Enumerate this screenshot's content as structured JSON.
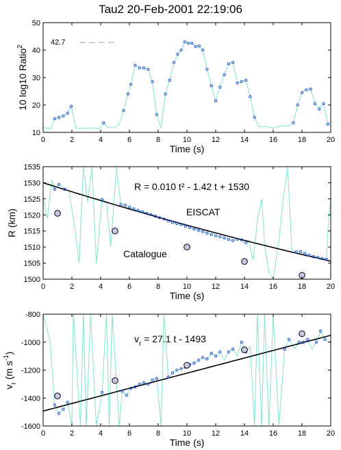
{
  "figure_title": "Tau2  20-Feb-2001 22:19:06",
  "chart_data": [
    {
      "type": "line",
      "xlabel": "Time  (s)",
      "ylabel_main": "10 log10 Ratio",
      "ylabel_sup": "2",
      "xlim": [
        0,
        20
      ],
      "ylim": [
        10,
        50
      ],
      "xticks": [
        "0",
        "2",
        "4",
        "6",
        "8",
        "10",
        "12",
        "14",
        "16",
        "18",
        "20"
      ],
      "yticks": [
        "10",
        "20",
        "30",
        "40",
        "50"
      ],
      "reference_label": "42.7",
      "reference_value": 42.7,
      "trace_color": "#7fe3cf",
      "marker_color": "#1f3fd6",
      "trace": [
        [
          0,
          12
        ],
        [
          0.2,
          11.6
        ],
        [
          0.5,
          11.3
        ],
        [
          0.8,
          15
        ],
        [
          1.1,
          15.4
        ],
        [
          1.4,
          16
        ],
        [
          1.7,
          17
        ],
        [
          1.95,
          19.5
        ],
        [
          2.3,
          11.5
        ],
        [
          2.8,
          11.5
        ],
        [
          3.5,
          11.6
        ],
        [
          3.9,
          11.3
        ],
        [
          4.2,
          13.5
        ],
        [
          4.5,
          11.7
        ],
        [
          5,
          11.8
        ],
        [
          5.3,
          13
        ],
        [
          5.6,
          18
        ],
        [
          5.9,
          24
        ],
        [
          6.1,
          27.5
        ],
        [
          6.4,
          34.5
        ],
        [
          6.7,
          33.5
        ],
        [
          7,
          33.5
        ],
        [
          7.3,
          33
        ],
        [
          7.6,
          28.5
        ],
        [
          7.9,
          16.5
        ],
        [
          8.2,
          11.5
        ],
        [
          8.5,
          24
        ],
        [
          8.8,
          29
        ],
        [
          9.1,
          35.5
        ],
        [
          9.35,
          38.5
        ],
        [
          9.6,
          40
        ],
        [
          9.85,
          43
        ],
        [
          10.1,
          42.5
        ],
        [
          10.35,
          42.5
        ],
        [
          10.6,
          41.3
        ],
        [
          10.85,
          41.5
        ],
        [
          11.1,
          40
        ],
        [
          11.4,
          33
        ],
        [
          11.7,
          27
        ],
        [
          12,
          21.5
        ],
        [
          12.3,
          26.5
        ],
        [
          12.6,
          31
        ],
        [
          12.9,
          35
        ],
        [
          13.2,
          35.5
        ],
        [
          13.5,
          28
        ],
        [
          13.8,
          28.5
        ],
        [
          14.1,
          29
        ],
        [
          14.4,
          23
        ],
        [
          14.7,
          15.5
        ],
        [
          15,
          12
        ],
        [
          15.5,
          12.2
        ],
        [
          16,
          11.5
        ],
        [
          16.6,
          12.5
        ],
        [
          17,
          12.2
        ],
        [
          17.4,
          13.5
        ],
        [
          17.7,
          20
        ],
        [
          18,
          24.5
        ],
        [
          18.3,
          25.5
        ],
        [
          18.6,
          25.8
        ],
        [
          18.9,
          20.5
        ],
        [
          19.2,
          18.5
        ],
        [
          19.5,
          20.5
        ],
        [
          19.8,
          13
        ],
        [
          20,
          14
        ]
      ],
      "points": [
        [
          0.8,
          15
        ],
        [
          1.1,
          15.4
        ],
        [
          1.4,
          16
        ],
        [
          1.7,
          17
        ],
        [
          1.95,
          19.5
        ],
        [
          4.2,
          13.5
        ],
        [
          5.6,
          18
        ],
        [
          5.9,
          24
        ],
        [
          6.1,
          27.5
        ],
        [
          6.4,
          34.5
        ],
        [
          6.7,
          33.5
        ],
        [
          7,
          33.5
        ],
        [
          7.3,
          33
        ],
        [
          7.6,
          28.5
        ],
        [
          7.9,
          16.5
        ],
        [
          8.5,
          24
        ],
        [
          8.8,
          29
        ],
        [
          9.1,
          35.5
        ],
        [
          9.35,
          38.5
        ],
        [
          9.6,
          40
        ],
        [
          9.85,
          43
        ],
        [
          10.1,
          42.5
        ],
        [
          10.35,
          42.5
        ],
        [
          10.6,
          41.3
        ],
        [
          10.85,
          41.5
        ],
        [
          11.1,
          40
        ],
        [
          11.4,
          33
        ],
        [
          11.7,
          27
        ],
        [
          12,
          21.5
        ],
        [
          12.3,
          26.5
        ],
        [
          12.6,
          31
        ],
        [
          12.9,
          35
        ],
        [
          13.2,
          35.5
        ],
        [
          13.5,
          28
        ],
        [
          13.8,
          28.5
        ],
        [
          14.1,
          29
        ],
        [
          14.4,
          23
        ],
        [
          14.7,
          15.5
        ],
        [
          17.4,
          13.5
        ],
        [
          17.7,
          20
        ],
        [
          18,
          24.5
        ],
        [
          18.3,
          25.5
        ],
        [
          18.6,
          25.8
        ],
        [
          18.9,
          20.5
        ],
        [
          19.2,
          18.5
        ],
        [
          19.5,
          20.5
        ],
        [
          19.8,
          13
        ]
      ]
    },
    {
      "type": "line",
      "xlabel": "Time  (s)",
      "ylabel": "R  (km)",
      "xlim": [
        0,
        20
      ],
      "ylim": [
        1500,
        1535
      ],
      "xticks": [
        "0",
        "2",
        "4",
        "6",
        "8",
        "10",
        "12",
        "14",
        "16",
        "18",
        "20"
      ],
      "yticks": [
        "1500",
        "1505",
        "1510",
        "1515",
        "1520",
        "1525",
        "1530",
        "1535"
      ],
      "fit_label": "R = 0.010 t² - 1.42 t + 1530",
      "fit_coeffs": [
        0.01,
        -1.42,
        1530
      ],
      "eiscat_label": "EISCAT",
      "catalogue_label": "Catalogue",
      "trace_color": "#7fe3cf",
      "marker_color": "#1f3fd6",
      "catalogue_fill": "#c8c8e6",
      "trace": [
        [
          0,
          1525
        ],
        [
          0.3,
          1519
        ],
        [
          0.6,
          1531
        ],
        [
          0.8,
          1528
        ],
        [
          1.1,
          1529.5
        ],
        [
          1.5,
          1528
        ],
        [
          1.8,
          1527.5
        ],
        [
          2.2,
          1516
        ],
        [
          2.5,
          1505
        ],
        [
          2.8,
          1535
        ],
        [
          3.1,
          1524
        ],
        [
          3.4,
          1535
        ],
        [
          3.7,
          1505
        ],
        [
          4.1,
          1525
        ],
        [
          4.4,
          1524
        ],
        [
          4.7,
          1510
        ],
        [
          5.1,
          1535
        ],
        [
          5.4,
          1523.2
        ],
        [
          5.7,
          1523
        ],
        [
          6,
          1522.4
        ],
        [
          6.3,
          1521.9
        ],
        [
          6.6,
          1521.4
        ],
        [
          6.9,
          1521
        ],
        [
          7.2,
          1520.5
        ],
        [
          7.5,
          1520.1
        ],
        [
          7.8,
          1519.6
        ],
        [
          8.1,
          1519.1
        ],
        [
          8.4,
          1518.7
        ],
        [
          8.7,
          1518.2
        ],
        [
          9,
          1517.7
        ],
        [
          9.3,
          1517.3
        ],
        [
          9.6,
          1517
        ],
        [
          9.9,
          1516.5
        ],
        [
          10.2,
          1516.1
        ],
        [
          10.5,
          1515.6
        ],
        [
          10.8,
          1515.2
        ],
        [
          11.1,
          1514.8
        ],
        [
          11.4,
          1514.3
        ],
        [
          11.7,
          1513.9
        ],
        [
          12,
          1513.5
        ],
        [
          12.3,
          1513.2
        ],
        [
          12.6,
          1512.8
        ],
        [
          12.9,
          1512.4
        ],
        [
          13.2,
          1512
        ],
        [
          13.5,
          1512.4
        ],
        [
          13.8,
          1512.2
        ],
        [
          14.1,
          1511
        ],
        [
          14.3,
          1512
        ],
        [
          14.6,
          1506
        ],
        [
          14.9,
          1518
        ],
        [
          15.2,
          1525
        ],
        [
          15.4,
          1511
        ],
        [
          15.7,
          1502
        ],
        [
          16,
          1500
        ],
        [
          16.4,
          1512
        ],
        [
          16.7,
          1525
        ],
        [
          17,
          1535
        ],
        [
          17.3,
          1509
        ],
        [
          17.6,
          1508.5
        ],
        [
          17.9,
          1508.6
        ],
        [
          18.2,
          1508
        ],
        [
          18.5,
          1507.5
        ],
        [
          18.8,
          1507
        ],
        [
          19.1,
          1506.8
        ],
        [
          19.4,
          1506.4
        ],
        [
          19.7,
          1506.2
        ],
        [
          19.85,
          1519
        ],
        [
          20,
          1525
        ]
      ],
      "points": [
        [
          0.8,
          1528
        ],
        [
          1.1,
          1529.5
        ],
        [
          1.5,
          1528
        ],
        [
          4.1,
          1524.8
        ],
        [
          5.4,
          1523.2
        ],
        [
          5.7,
          1523
        ],
        [
          6,
          1522.4
        ],
        [
          6.3,
          1521.9
        ],
        [
          6.6,
          1521.4
        ],
        [
          6.9,
          1521
        ],
        [
          7.2,
          1520.5
        ],
        [
          7.5,
          1520.1
        ],
        [
          7.8,
          1519.6
        ],
        [
          8.1,
          1519.1
        ],
        [
          8.4,
          1518.7
        ],
        [
          8.7,
          1518.2
        ],
        [
          9,
          1517.7
        ],
        [
          9.3,
          1517.3
        ],
        [
          9.6,
          1517
        ],
        [
          9.9,
          1516.5
        ],
        [
          10.2,
          1516.1
        ],
        [
          10.5,
          1515.6
        ],
        [
          10.8,
          1515.2
        ],
        [
          11.1,
          1514.8
        ],
        [
          11.4,
          1514.3
        ],
        [
          11.7,
          1513.9
        ],
        [
          12,
          1513.5
        ],
        [
          12.3,
          1513.2
        ],
        [
          12.6,
          1512.8
        ],
        [
          12.9,
          1512.4
        ],
        [
          13.2,
          1512
        ],
        [
          13.5,
          1512.4
        ],
        [
          13.8,
          1512.2
        ],
        [
          14.1,
          1511.4
        ],
        [
          17.6,
          1508.5
        ],
        [
          17.9,
          1508.6
        ],
        [
          18.2,
          1508
        ],
        [
          18.5,
          1507.5
        ],
        [
          18.8,
          1507
        ],
        [
          19.1,
          1506.8
        ],
        [
          19.4,
          1506.4
        ],
        [
          19.7,
          1506.2
        ]
      ],
      "catalogue": [
        [
          1,
          1520.5
        ],
        [
          5,
          1515
        ],
        [
          10,
          1510
        ],
        [
          14,
          1505.5
        ],
        [
          18,
          1501.2
        ]
      ]
    },
    {
      "type": "line",
      "xlabel": "Time  (s)",
      "ylabel_main": "v",
      "ylabel_sub": "r",
      "ylabel_units": "(m s",
      "ylabel_units_sup": "-1",
      "ylabel_units_close": ")",
      "xlim": [
        0,
        20
      ],
      "ylim": [
        -1600,
        -800
      ],
      "xticks": [
        "0",
        "2",
        "4",
        "6",
        "8",
        "10",
        "12",
        "14",
        "16",
        "18",
        "20"
      ],
      "yticks": [
        "-1600",
        "-1400",
        "-1200",
        "-1000",
        "-800"
      ],
      "fit_label_main": "v",
      "fit_label_sub": "r",
      "fit_label_rest": " = 27.1 t - 1493",
      "fit_coeffs": [
        27.1,
        -1493
      ],
      "trace_color": "#7fe3cf",
      "marker_color": "#1f3fd6",
      "catalogue_fill": "#c8c8e6",
      "trace": [
        [
          0,
          -800
        ],
        [
          0.5,
          -1000
        ],
        [
          0.8,
          -1450
        ],
        [
          1.1,
          -1510
        ],
        [
          1.4,
          -1480
        ],
        [
          1.7,
          -1430
        ],
        [
          2,
          -1600
        ],
        [
          2.1,
          -800
        ],
        [
          2.6,
          -1600
        ],
        [
          2.8,
          -800
        ],
        [
          3,
          -1600
        ],
        [
          3.3,
          -800
        ],
        [
          3.7,
          -1600
        ],
        [
          4.1,
          -1360
        ],
        [
          4.4,
          -800
        ],
        [
          4.6,
          -1600
        ],
        [
          4.8,
          -800
        ],
        [
          5.3,
          -1600
        ],
        [
          5.5,
          -1350
        ],
        [
          5.8,
          -1380
        ],
        [
          6.1,
          -1330
        ],
        [
          6.4,
          -1320
        ],
        [
          6.7,
          -1300
        ],
        [
          7,
          -1290
        ],
        [
          7.3,
          -1300
        ],
        [
          7.6,
          -1270
        ],
        [
          7.9,
          -1260
        ],
        [
          8.2,
          -1600
        ],
        [
          8.4,
          -800
        ],
        [
          8.7,
          -1250
        ],
        [
          9,
          -1220
        ],
        [
          9.3,
          -1200
        ],
        [
          9.6,
          -1190
        ],
        [
          9.9,
          -1180
        ],
        [
          10.2,
          -1160
        ],
        [
          10.5,
          -1150
        ],
        [
          10.8,
          -1130
        ],
        [
          11.1,
          -1110
        ],
        [
          11.4,
          -1120
        ],
        [
          11.7,
          -1080
        ],
        [
          12,
          -1100
        ],
        [
          12.3,
          -1070
        ],
        [
          12.6,
          -1130
        ],
        [
          12.9,
          -1070
        ],
        [
          13.2,
          -1050
        ],
        [
          13.5,
          -1100
        ],
        [
          13.8,
          -1000
        ],
        [
          14.1,
          -1070
        ],
        [
          14.4,
          -1030
        ],
        [
          14.7,
          -1600
        ],
        [
          14.9,
          -800
        ],
        [
          15.2,
          -1600
        ],
        [
          15.4,
          -800
        ],
        [
          15.7,
          -1600
        ],
        [
          16,
          -800
        ],
        [
          16.4,
          -1600
        ],
        [
          16.8,
          -1050
        ],
        [
          17.1,
          -980
        ],
        [
          17.5,
          -1050
        ],
        [
          17.8,
          -1000
        ],
        [
          18.1,
          -1000
        ],
        [
          18.4,
          -980
        ],
        [
          18.7,
          -1050
        ],
        [
          19,
          -1000
        ],
        [
          19.3,
          -920
        ],
        [
          19.6,
          -980
        ],
        [
          20,
          -1000
        ]
      ],
      "points": [
        [
          0.8,
          -1450
        ],
        [
          1.1,
          -1510
        ],
        [
          1.4,
          -1480
        ],
        [
          1.7,
          -1430
        ],
        [
          4.1,
          -1360
        ],
        [
          5.5,
          -1350
        ],
        [
          5.8,
          -1380
        ],
        [
          6.1,
          -1330
        ],
        [
          6.4,
          -1320
        ],
        [
          6.7,
          -1300
        ],
        [
          7,
          -1290
        ],
        [
          7.3,
          -1300
        ],
        [
          7.6,
          -1270
        ],
        [
          7.9,
          -1260
        ],
        [
          8.7,
          -1250
        ],
        [
          9,
          -1220
        ],
        [
          9.3,
          -1200
        ],
        [
          9.6,
          -1190
        ],
        [
          9.9,
          -1180
        ],
        [
          10.2,
          -1160
        ],
        [
          10.5,
          -1150
        ],
        [
          10.8,
          -1130
        ],
        [
          11.1,
          -1110
        ],
        [
          11.4,
          -1120
        ],
        [
          11.7,
          -1080
        ],
        [
          12,
          -1100
        ],
        [
          12.3,
          -1070
        ],
        [
          12.9,
          -1070
        ],
        [
          13.2,
          -1050
        ],
        [
          13.8,
          -1000
        ],
        [
          14.1,
          -1070
        ],
        [
          16.8,
          -1050
        ],
        [
          17.1,
          -980
        ],
        [
          17.8,
          -1000
        ],
        [
          18.1,
          -1000
        ],
        [
          18.4,
          -980
        ],
        [
          19,
          -1000
        ],
        [
          19.3,
          -920
        ],
        [
          19.6,
          -980
        ]
      ],
      "catalogue": [
        [
          1,
          -1385
        ],
        [
          5,
          -1275
        ],
        [
          10,
          -1165
        ],
        [
          14,
          -1055
        ],
        [
          18,
          -940
        ]
      ]
    }
  ]
}
